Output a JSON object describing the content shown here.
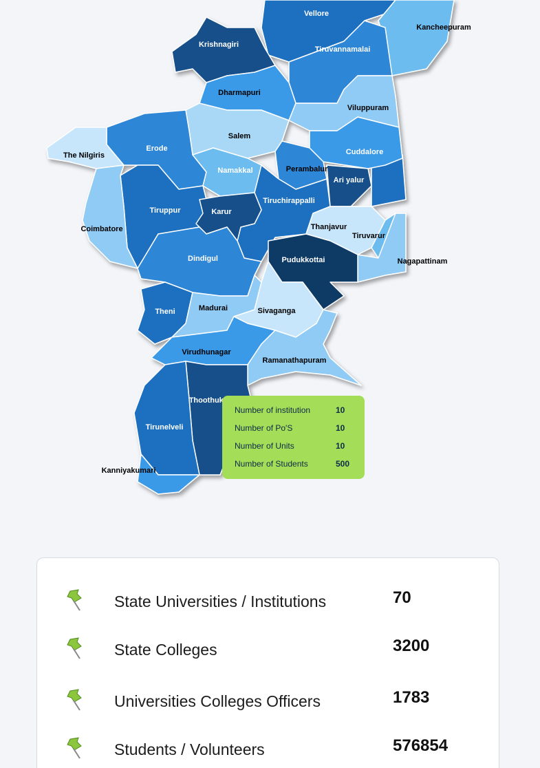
{
  "map": {
    "districts": [
      "Vellore",
      "Kancheepuram",
      "Krishnagiri",
      "Tiruvannamalai",
      "Dharmapuri",
      "Viluppuram",
      "Salem",
      "Erode",
      "The Nilgiris",
      "Cuddalore",
      "Namakkal",
      "Perambalur",
      "Ari yalur",
      "Tiruchirappalli",
      "Tiruppur",
      "Karur",
      "Coimbatore",
      "Thanjavur",
      "Tiruvarur",
      "Nagapattinam",
      "Pudukkottai",
      "Dindigul",
      "Theni",
      "Madurai",
      "Sivaganga",
      "Virudhunagar",
      "Ramanathapuram",
      "Thoothukudi",
      "Tirunelveli",
      "Kanniyakumari"
    ]
  },
  "tooltip": {
    "rows": [
      {
        "label": "Number of institution",
        "value": 10
      },
      {
        "label": "Number of Po'S",
        "value": 10
      },
      {
        "label": "Number of Units",
        "value": 10
      },
      {
        "label": "Number of Students",
        "value": 500
      }
    ]
  },
  "stats": {
    "rows": [
      {
        "label": "State Universities / Institutions",
        "value": 70
      },
      {
        "label": "State Colleges",
        "value": 3200
      },
      {
        "label": "Universities Colleges Officers",
        "value": 1783
      },
      {
        "label": "Students / Volunteers",
        "value": 576854
      }
    ]
  }
}
